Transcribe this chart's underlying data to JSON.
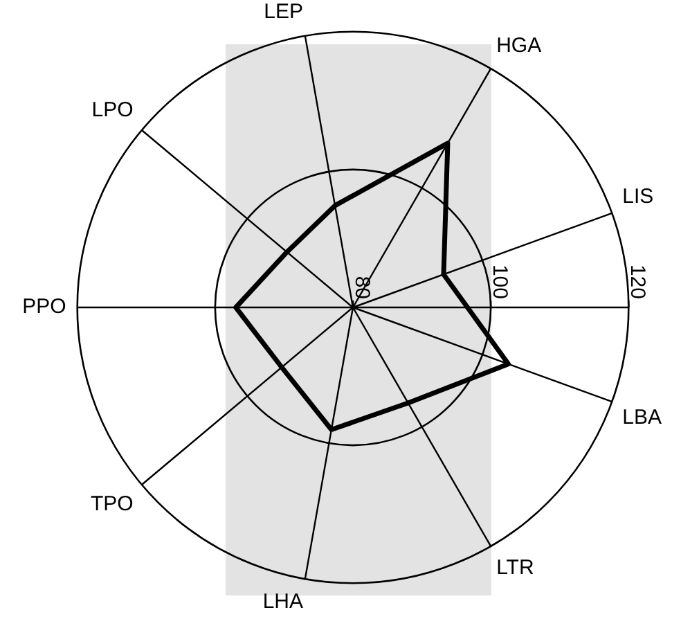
{
  "chart_data": {
    "type": "radar",
    "categories": [
      "LEP",
      "HGA",
      "LIS",
      "LBA",
      "LTR",
      "LHA",
      "TPO",
      "PPO",
      "LPO"
    ],
    "series": [
      {
        "color": "#000000",
        "values": [
          95,
          107.5,
          94,
          104,
          96,
          98,
          93.5,
          97,
          92.5
        ]
      }
    ],
    "ylim": [
      80,
      120
    ],
    "yticks": [
      80,
      100,
      120
    ],
    "grid": true,
    "legend": false,
    "marker": "none"
  }
}
